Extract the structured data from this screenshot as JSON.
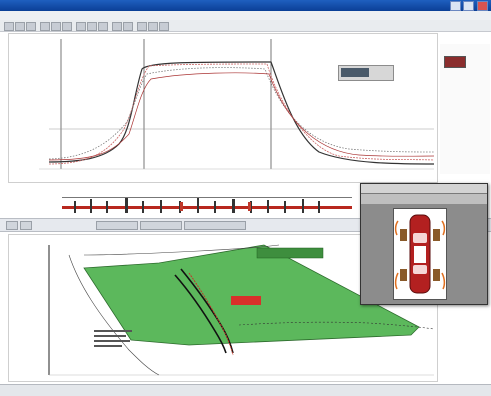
{
  "window": {
    "title": "",
    "buttons": [
      "minimize",
      "maximize",
      "close"
    ]
  },
  "menu": {
    "items": []
  },
  "toolbar": {
    "buttons": 14
  },
  "plot1": {
    "title": "",
    "legend": {
      "label": ""
    },
    "x_range": [
      0,
      1
    ],
    "y_range": [
      -1,
      1
    ]
  },
  "right_panel": {
    "items": [
      "",
      "",
      "",
      "",
      "",
      "",
      "",
      ""
    ]
  },
  "plot2": {
    "title": "",
    "info_label": "",
    "red_tag": ""
  },
  "dialog": {
    "title": ""
  },
  "status": {
    "left": "",
    "mid": "",
    "right": ""
  }
}
